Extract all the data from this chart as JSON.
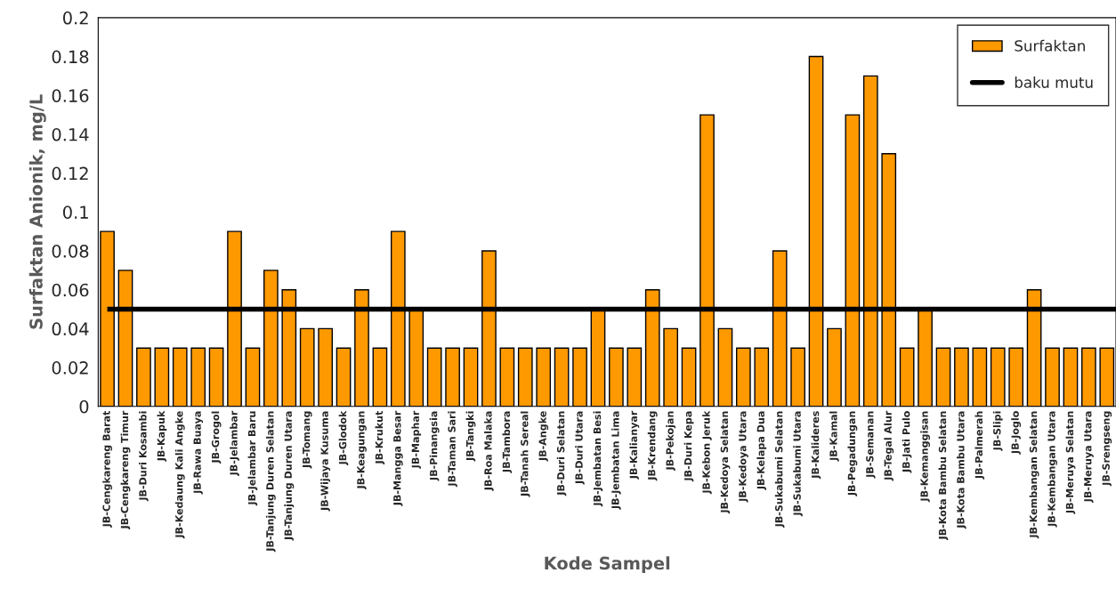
{
  "chart_data": {
    "type": "bar",
    "xlabel": "Kode Sampel",
    "ylabel": "Surfaktan Anionik, mg/L",
    "categories": [
      "JB-Cengkareng Barat",
      "JB-Cengkareng Timur",
      "JB-Duri Kosambi",
      "JB-Kapuk",
      "JB-Kedaung Kali Angke",
      "JB-Rawa Buaya",
      "JB-Grogol",
      "JB-Jelambar",
      "JB-Jelambar Baru",
      "JB-Tanjung Duren Selatan",
      "JB-Tanjung Duren Utara",
      "JB-Tomang",
      "JB-Wijaya Kusuma",
      "JB-Glodok",
      "JB-Keagungan",
      "JB-Krukut",
      "JB-Mangga Besar",
      "JB-Maphar",
      "JB-Pinangsia",
      "JB-Taman Sari",
      "JB-Tangki",
      "JB-Roa Malaka",
      "JB-Tambora",
      "JB-Tanah Sereal",
      "JB-Angke",
      "JB-Duri Selatan",
      "JB-Duri Utara",
      "JB-Jembatan Besi",
      "JB-Jembatan Lima",
      "JB-Kalianyar",
      "JB-Krendang",
      "JB-Pekojan",
      "JB-Duri Kepa",
      "JB-Kebon Jeruk",
      "JB-Kedoya Selatan",
      "JB-Kedoya Utara",
      "JB-Kelapa Dua",
      "JB-Sukabumi Selatan",
      "JB-Sukabumi Utara",
      "JB-Kalideres",
      "JB-Kamal",
      "JB-Pegadungan",
      "JB-Semanan",
      "JB-Tegal Alur",
      "JB-Jati Pulo",
      "JB-Kemanggisan",
      "JB-Kota Bambu Selatan",
      "JB-Kota Bambu Utara",
      "JB-Palmerah",
      "JB-Slipi",
      "JB-Joglo",
      "JB-Kembangan Selatan",
      "JB-Kembangan Utara",
      "JB-Meruya Selatan",
      "JB-Meruya Utara",
      "JB-Srengseng"
    ],
    "series": [
      {
        "name": "Surfaktan",
        "color": "#ff9900",
        "values": [
          0.09,
          0.07,
          0.03,
          0.03,
          0.03,
          0.03,
          0.03,
          0.09,
          0.03,
          0.07,
          0.06,
          0.04,
          0.04,
          0.03,
          0.06,
          0.03,
          0.09,
          0.05,
          0.03,
          0.03,
          0.03,
          0.08,
          0.03,
          0.03,
          0.03,
          0.03,
          0.03,
          0.05,
          0.03,
          0.03,
          0.06,
          0.04,
          0.03,
          0.15,
          0.04,
          0.03,
          0.03,
          0.08,
          0.03,
          0.18,
          0.04,
          0.15,
          0.17,
          0.13,
          0.03,
          0.05,
          0.03,
          0.03,
          0.03,
          0.03,
          0.03,
          0.06,
          0.03,
          0.03,
          0.03,
          0.03
        ]
      }
    ],
    "ref_lines": [
      {
        "axis": "y",
        "value": 0.05,
        "label": "baku mutu",
        "color": "#000000"
      }
    ],
    "ylim": [
      0,
      0.2
    ],
    "yticks": [
      0,
      0.02,
      0.04,
      0.06,
      0.08,
      0.1,
      0.12,
      0.14,
      0.16,
      0.18,
      0.2
    ],
    "grid": false,
    "legend": "top right"
  }
}
